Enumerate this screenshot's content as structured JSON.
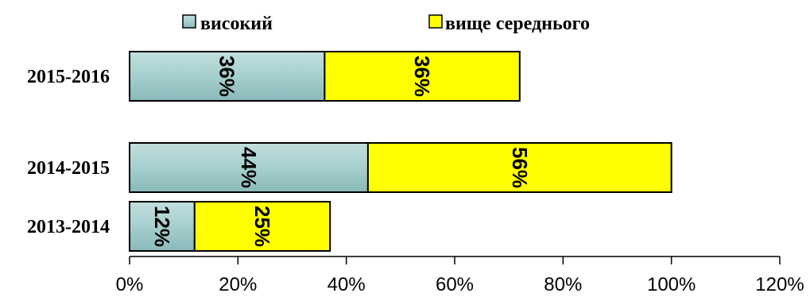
{
  "chart_data": {
    "type": "bar",
    "orientation": "horizontal",
    "stacked": true,
    "title": "",
    "xlabel": "",
    "ylabel": "",
    "categories": [
      "2015-2016",
      "2014-2015",
      "2013-2014"
    ],
    "series": [
      {
        "name": "високий",
        "values": [
          36,
          44,
          12
        ],
        "labels": [
          "36%",
          "44%",
          "12%"
        ],
        "color": "#99cccc"
      },
      {
        "name": "вище середнього",
        "values": [
          36,
          56,
          25
        ],
        "labels": [
          "36%",
          "56%",
          "25%"
        ],
        "color": "#ffff00"
      }
    ],
    "xlim": [
      0,
      120
    ],
    "x_ticks": [
      "0%",
      "20%",
      "40%",
      "60%",
      "80%",
      "100%",
      "120%"
    ],
    "grid": false,
    "legend_position": "top"
  }
}
